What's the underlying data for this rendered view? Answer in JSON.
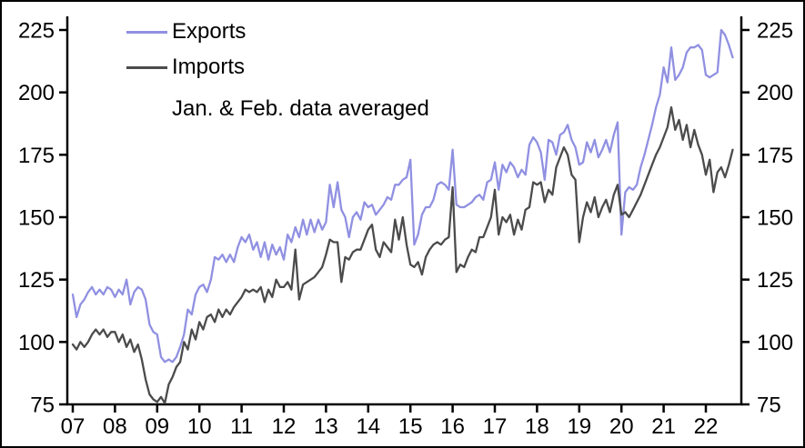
{
  "legend": {
    "items": [
      {
        "label": "Exports",
        "color": "#9090e2"
      },
      {
        "label": "Imports",
        "color": "#4b4b4b"
      }
    ],
    "note": "Jan. & Feb. data averaged"
  },
  "chart_data": {
    "type": "line",
    "title": "",
    "xlabel": "",
    "ylabel": "",
    "x_start_year": 2007,
    "points_per_year": 11,
    "x_tick_labels": [
      "07",
      "08",
      "09",
      "10",
      "11",
      "12",
      "13",
      "14",
      "15",
      "16",
      "17",
      "18",
      "19",
      "20",
      "21",
      "22"
    ],
    "y_ticks": [
      75,
      100,
      125,
      150,
      175,
      200,
      225
    ],
    "ylim": [
      75,
      225
    ],
    "grid": false,
    "legend_position": "top-left",
    "series": [
      {
        "name": "Exports",
        "color": "#9090e2",
        "values": [
          119,
          110,
          115,
          117,
          120,
          122,
          119,
          121,
          119,
          122,
          121,
          118,
          121,
          119,
          125,
          115,
          120,
          122,
          121,
          117,
          107,
          104,
          103,
          94,
          92,
          93,
          92,
          94,
          98,
          103,
          113,
          111,
          119,
          122,
          123,
          120,
          125,
          134,
          133,
          135,
          132,
          135,
          132,
          138,
          142,
          140,
          143,
          137,
          140,
          134,
          140,
          133,
          139,
          135,
          138,
          133,
          143,
          140,
          146,
          142,
          149,
          143,
          149,
          144,
          149,
          145,
          148,
          163,
          154,
          164,
          153,
          150,
          142,
          150,
          152,
          149,
          156,
          154,
          155,
          151,
          153,
          155,
          158,
          157,
          163,
          163,
          165,
          166,
          173,
          139,
          143,
          151,
          154,
          154,
          157,
          163,
          164,
          163,
          161,
          177,
          155,
          154,
          154,
          155,
          156,
          158,
          159,
          157,
          164,
          165,
          172,
          161,
          171,
          168,
          172,
          170,
          166,
          169,
          167,
          179,
          182,
          180,
          176,
          165,
          181,
          180,
          175,
          183,
          184,
          187,
          181,
          178,
          171,
          172,
          180,
          176,
          181,
          174,
          177,
          181,
          176,
          183,
          188,
          143,
          160,
          162,
          161,
          163,
          170,
          175,
          181,
          187,
          194,
          199,
          210,
          204,
          218,
          205,
          207,
          210,
          216,
          218,
          218,
          219,
          217,
          207,
          206,
          207,
          208,
          225,
          223,
          219,
          214
        ]
      },
      {
        "name": "Imports",
        "color": "#4b4b4b",
        "values": [
          99,
          97,
          100,
          98,
          100,
          103,
          105,
          103,
          105,
          102,
          104,
          104,
          100,
          103,
          98,
          101,
          96,
          99,
          93,
          85,
          79,
          77,
          76,
          78,
          75.5,
          83,
          86,
          90,
          92,
          100,
          97,
          105,
          101,
          108,
          105,
          110,
          111,
          108,
          113,
          110,
          113,
          111,
          114,
          116,
          118,
          121,
          120,
          121,
          120,
          122,
          116,
          121,
          118,
          125,
          122,
          122,
          124,
          121,
          137,
          117,
          123,
          124,
          125,
          126,
          128,
          130,
          135,
          141,
          140,
          140,
          124,
          134,
          133,
          136,
          137,
          137,
          141,
          145,
          147,
          137,
          134,
          140,
          138,
          136,
          149,
          141,
          150,
          139,
          131,
          130,
          132,
          127,
          134,
          137,
          139,
          140,
          139,
          141,
          142,
          162,
          128,
          131,
          130,
          134,
          137,
          136,
          142,
          142,
          146,
          150,
          161,
          143,
          150,
          148,
          151,
          143,
          149,
          145,
          153,
          154,
          164,
          163,
          164,
          156,
          161,
          159,
          170,
          174,
          178,
          175,
          167,
          165,
          140,
          150,
          156,
          152,
          158,
          150,
          154,
          157,
          152,
          159,
          163,
          151,
          152,
          150,
          153,
          156,
          159,
          163,
          167,
          171,
          175,
          178,
          182,
          186,
          194,
          185,
          189,
          181,
          187,
          178,
          185,
          179,
          175,
          167,
          173,
          160,
          168,
          170,
          166,
          171,
          177
        ]
      }
    ]
  }
}
